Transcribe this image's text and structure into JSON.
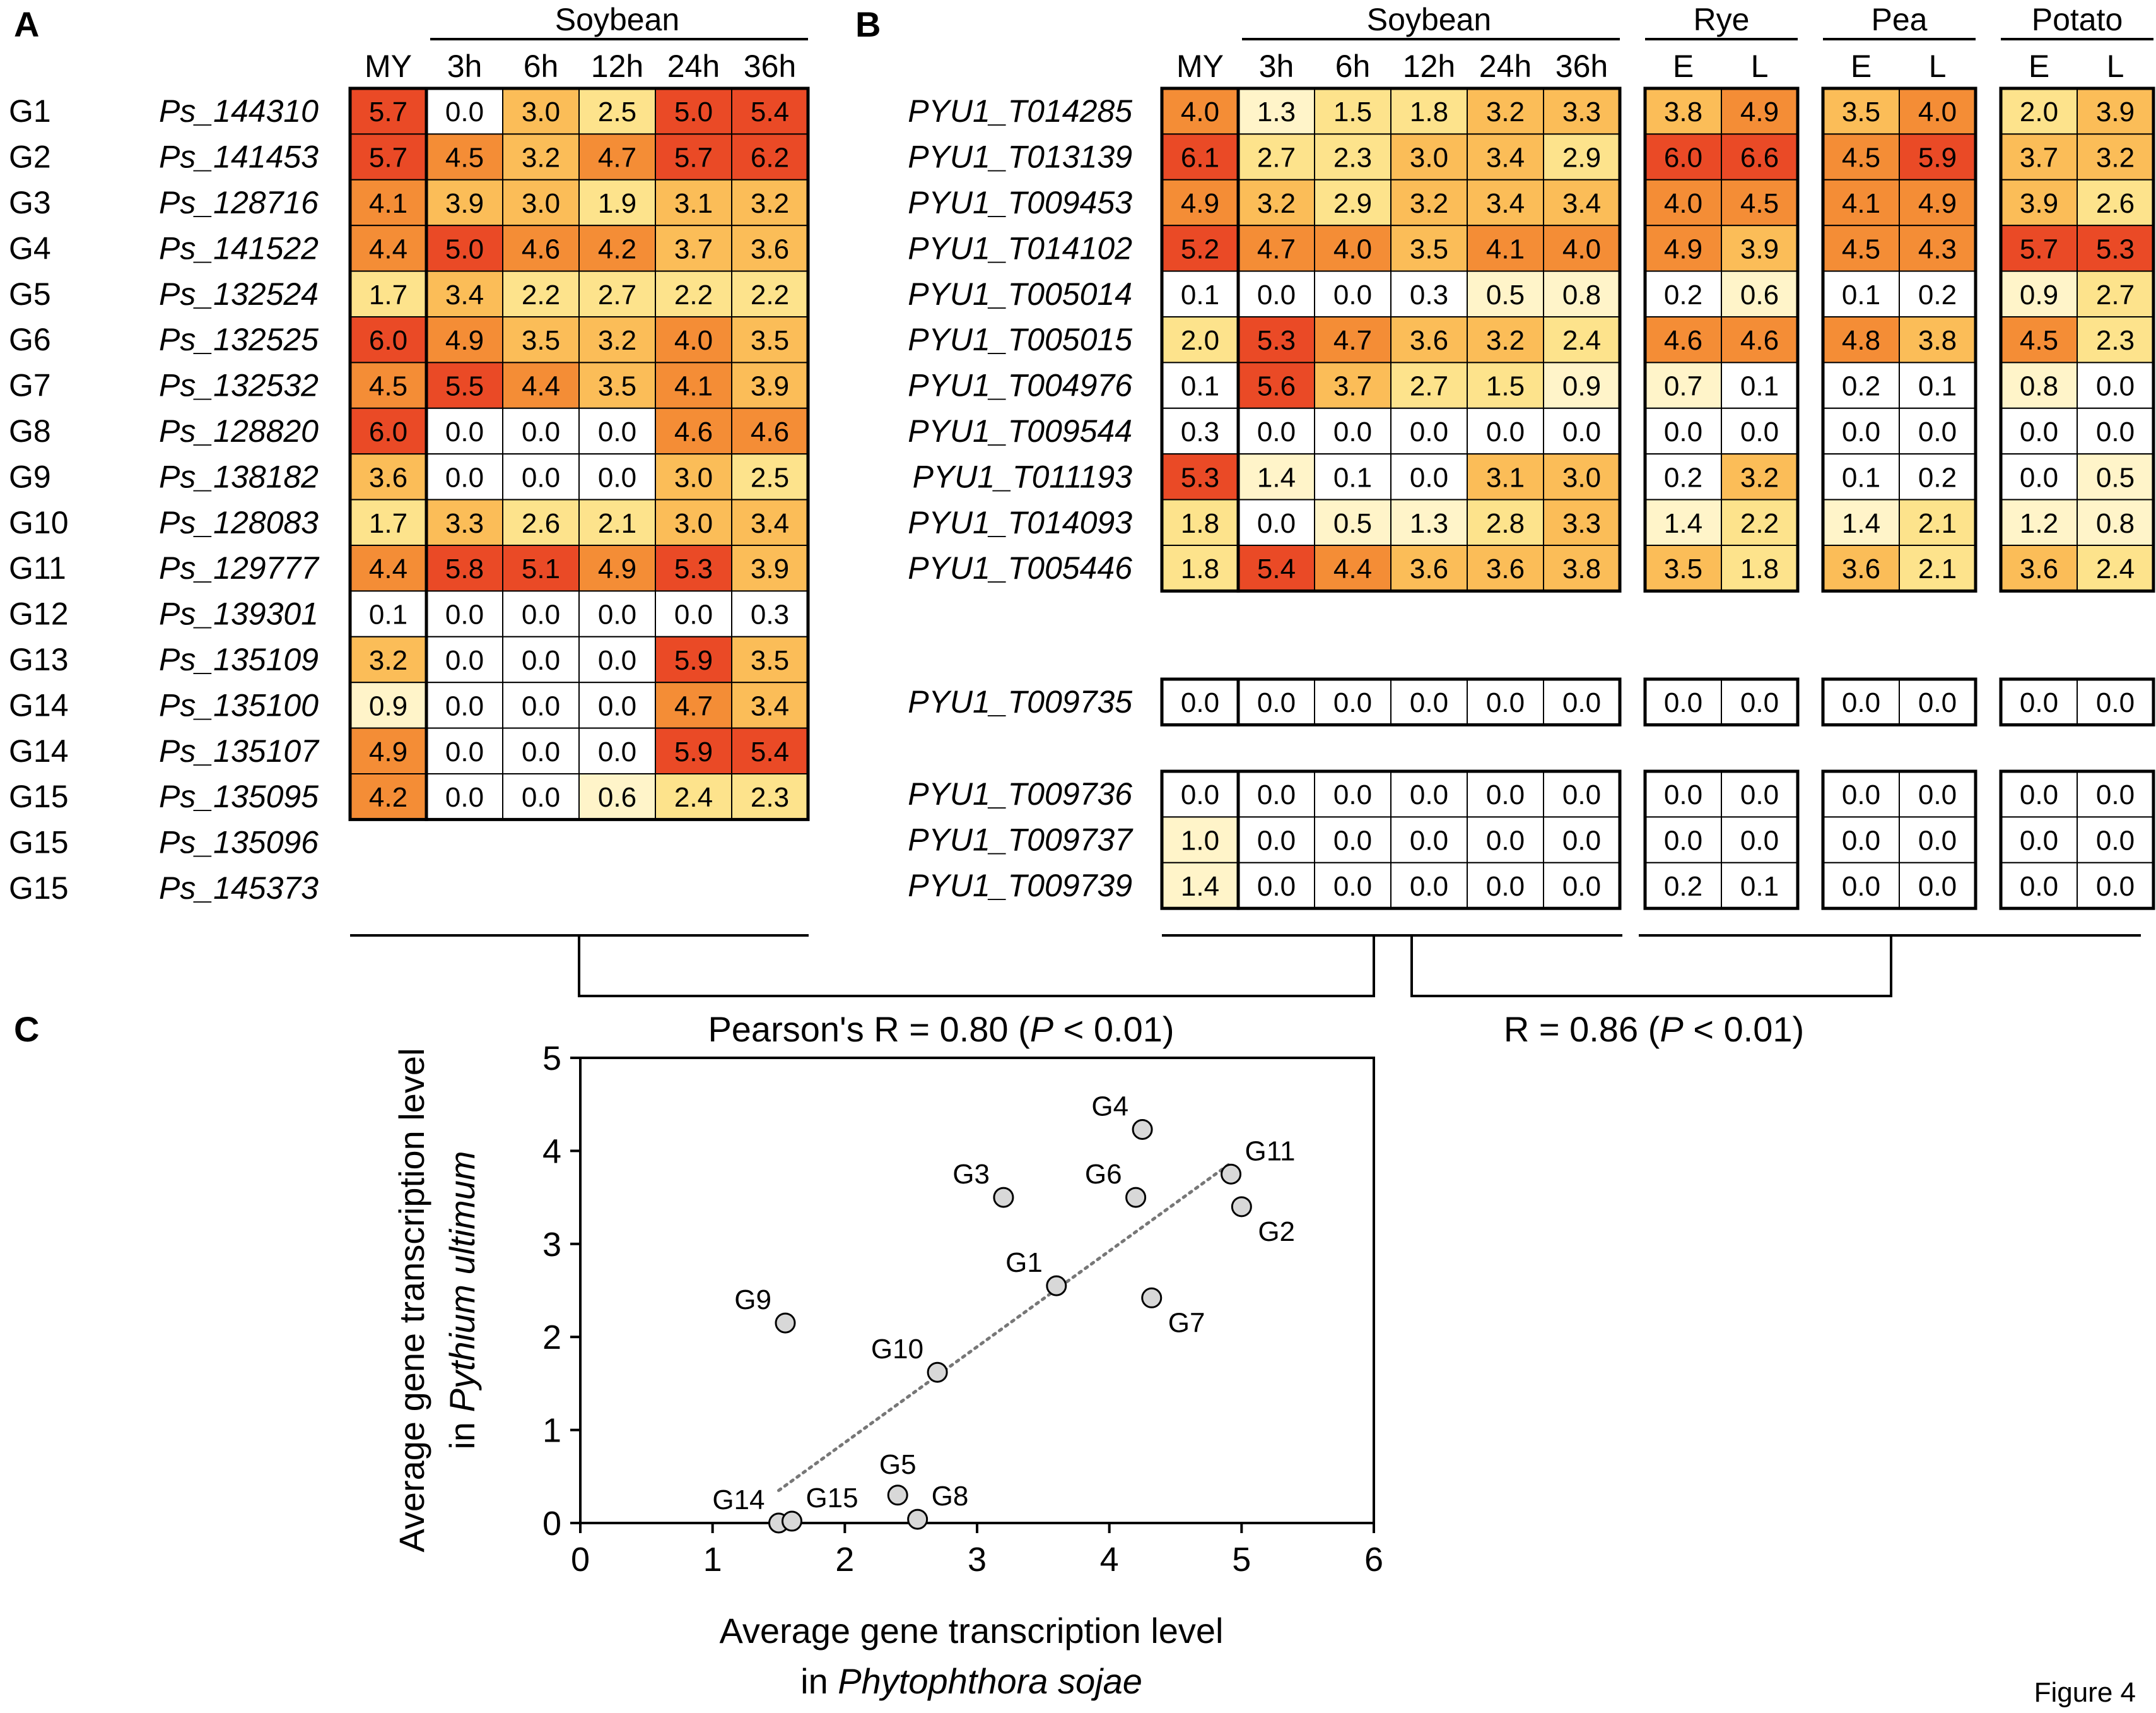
{
  "figure_label": "Figure 4",
  "colors": {
    "scale": [
      "#ffffff",
      "#fff4c9",
      "#fde38c",
      "#fbbd58",
      "#f48d36",
      "#ea4a26"
    ],
    "stroke": "#000000",
    "point_fill": "#d8d8d8",
    "trend": "#777777"
  },
  "panel_a": {
    "letter": "A",
    "group_title": "Soybean",
    "columns": [
      "MY",
      "3h",
      "6h",
      "12h",
      "24h",
      "36h"
    ],
    "rows": [
      {
        "g": "G1",
        "id": "Ps_144310",
        "v": [
          5.7,
          0.0,
          3.0,
          2.5,
          5.0,
          5.4
        ]
      },
      {
        "g": "G2",
        "id": "Ps_141453",
        "v": [
          5.7,
          4.5,
          3.2,
          4.7,
          5.7,
          6.2
        ]
      },
      {
        "g": "G3",
        "id": "Ps_128716",
        "v": [
          4.1,
          3.9,
          3.0,
          1.9,
          3.1,
          3.2
        ]
      },
      {
        "g": "G4",
        "id": "Ps_141522",
        "v": [
          4.4,
          5.0,
          4.6,
          4.2,
          3.7,
          3.6
        ]
      },
      {
        "g": "G5",
        "id": "Ps_132524",
        "v": [
          1.7,
          3.4,
          2.2,
          2.7,
          2.2,
          2.2
        ]
      },
      {
        "g": "G6",
        "id": "Ps_132525",
        "v": [
          6.0,
          4.9,
          3.5,
          3.2,
          4.0,
          3.5
        ]
      },
      {
        "g": "G7",
        "id": "Ps_132532",
        "v": [
          4.5,
          5.5,
          4.4,
          3.5,
          4.1,
          3.9
        ]
      },
      {
        "g": "G8",
        "id": "Ps_128820",
        "v": [
          6.0,
          0.0,
          0.0,
          0.0,
          4.6,
          4.6
        ]
      },
      {
        "g": "G9",
        "id": "Ps_138182",
        "v": [
          3.6,
          0.0,
          0.0,
          0.0,
          3.0,
          2.5
        ]
      },
      {
        "g": "G10",
        "id": "Ps_128083",
        "v": [
          1.7,
          3.3,
          2.6,
          2.1,
          3.0,
          3.4
        ]
      },
      {
        "g": "G11",
        "id": "Ps_129777",
        "v": [
          4.4,
          5.8,
          5.1,
          4.9,
          5.3,
          3.9
        ]
      },
      {
        "g": "G12",
        "id": "Ps_139301",
        "v": [
          0.1,
          0.0,
          0.0,
          0.0,
          0.0,
          0.3
        ]
      },
      {
        "g": "G13",
        "id": "Ps_135109",
        "v": [
          3.2,
          0.0,
          0.0,
          0.0,
          5.9,
          3.5
        ]
      },
      {
        "g": "G14",
        "id": "Ps_135100",
        "v": [
          0.9,
          0.0,
          0.0,
          0.0,
          4.7,
          3.4
        ]
      },
      {
        "g": "G14",
        "id": "Ps_135107",
        "v": [
          4.9,
          0.0,
          0.0,
          0.0,
          5.9,
          5.4
        ]
      },
      {
        "g": "G15",
        "id": "Ps_135095",
        "v": [
          4.2,
          0.0,
          0.0,
          0.6,
          2.4,
          2.3
        ]
      },
      {
        "g": "G15",
        "id": "Ps_135096",
        "v": null
      },
      {
        "g": "G15",
        "id": "Ps_145373",
        "v": null
      }
    ]
  },
  "panel_b": {
    "letter": "B",
    "groups": [
      {
        "title": "Soybean",
        "columns": [
          "MY",
          "3h",
          "6h",
          "12h",
          "24h",
          "36h"
        ]
      },
      {
        "title": "Rye",
        "columns": [
          "E",
          "L"
        ]
      },
      {
        "title": "Pea",
        "columns": [
          "E",
          "L"
        ]
      },
      {
        "title": "Potato",
        "columns": [
          "E",
          "L"
        ]
      }
    ],
    "row_blocks": [
      [
        {
          "id": "PYU1_T014285",
          "v": [
            4.0,
            1.3,
            1.5,
            1.8,
            3.2,
            3.3,
            3.8,
            4.9,
            3.5,
            4.0,
            2.0,
            3.9
          ]
        },
        {
          "id": "PYU1_T013139",
          "v": [
            6.1,
            2.7,
            2.3,
            3.0,
            3.4,
            2.9,
            6.0,
            6.6,
            4.5,
            5.9,
            3.7,
            3.2
          ]
        },
        {
          "id": "PYU1_T009453",
          "v": [
            4.9,
            3.2,
            2.9,
            3.2,
            3.4,
            3.4,
            4.0,
            4.5,
            4.1,
            4.9,
            3.9,
            2.6
          ]
        },
        {
          "id": "PYU1_T014102",
          "v": [
            5.2,
            4.7,
            4.0,
            3.5,
            4.1,
            4.0,
            4.9,
            3.9,
            4.5,
            4.3,
            5.7,
            5.3
          ]
        },
        {
          "id": "PYU1_T005014",
          "v": [
            0.1,
            0.0,
            0.0,
            0.3,
            0.5,
            0.8,
            0.2,
            0.6,
            0.1,
            0.2,
            0.9,
            2.7
          ]
        },
        {
          "id": "PYU1_T005015",
          "v": [
            2.0,
            5.3,
            4.7,
            3.6,
            3.2,
            2.4,
            4.6,
            4.6,
            4.8,
            3.8,
            4.5,
            2.3
          ]
        },
        {
          "id": "PYU1_T004976",
          "v": [
            0.1,
            5.6,
            3.7,
            2.7,
            1.5,
            0.9,
            0.7,
            0.1,
            0.2,
            0.1,
            0.8,
            0.0
          ]
        },
        {
          "id": "PYU1_T009544",
          "v": [
            0.3,
            0.0,
            0.0,
            0.0,
            0.0,
            0.0,
            0.0,
            0.0,
            0.0,
            0.0,
            0.0,
            0.0
          ]
        },
        {
          "id": "PYU1_T011193",
          "v": [
            5.3,
            1.4,
            0.1,
            0.0,
            3.1,
            3.0,
            0.2,
            3.2,
            0.1,
            0.2,
            0.0,
            0.5
          ]
        },
        {
          "id": "PYU1_T014093",
          "v": [
            1.8,
            0.0,
            0.5,
            1.3,
            2.8,
            3.3,
            1.4,
            2.2,
            1.4,
            2.1,
            1.2,
            0.8
          ]
        },
        {
          "id": "PYU1_T005446",
          "v": [
            1.8,
            5.4,
            4.4,
            3.6,
            3.6,
            3.8,
            3.5,
            1.8,
            3.6,
            2.1,
            3.6,
            2.4
          ]
        }
      ],
      [
        {
          "id": "PYU1_T009735",
          "v": [
            0.0,
            0.0,
            0.0,
            0.0,
            0.0,
            0.0,
            0.0,
            0.0,
            0.0,
            0.0,
            0.0,
            0.0
          ]
        }
      ],
      [
        {
          "id": "PYU1_T009736",
          "v": [
            0.0,
            0.0,
            0.0,
            0.0,
            0.0,
            0.0,
            0.0,
            0.0,
            0.0,
            0.0,
            0.0,
            0.0
          ]
        },
        {
          "id": "PYU1_T009737",
          "v": [
            1.0,
            0.0,
            0.0,
            0.0,
            0.0,
            0.0,
            0.0,
            0.0,
            0.0,
            0.0,
            0.0,
            0.0
          ]
        },
        {
          "id": "PYU1_T009739",
          "v": [
            1.4,
            0.0,
            0.0,
            0.0,
            0.0,
            0.0,
            0.2,
            0.1,
            0.0,
            0.0,
            0.0,
            0.0
          ]
        }
      ]
    ]
  },
  "correlations": {
    "left": {
      "prefix": "Pearson's R = 0.80 (",
      "p": "P",
      "suffix": " < 0.01)"
    },
    "right": {
      "prefix": "R = 0.86 (",
      "p": "P",
      "suffix": " < 0.01)"
    }
  },
  "chart_data": {
    "letter": "C",
    "type": "scatter",
    "title": "",
    "xlabel_line1": "Average gene transcription level",
    "xlabel_line2_prefix": "in ",
    "xlabel_line2_italic": "Phytophthora sojae",
    "ylabel_line1": "Average gene transcription level",
    "ylabel_line2_prefix": "in ",
    "ylabel_line2_italic": "Pythium ultimum",
    "xlim": [
      0,
      6
    ],
    "ylim": [
      0,
      5
    ],
    "xticks": [
      "0",
      "1",
      "2",
      "3",
      "4",
      "5",
      "6"
    ],
    "yticks": [
      "0",
      "1",
      "2",
      "3",
      "4",
      "5"
    ],
    "points": [
      {
        "label": "G1",
        "x": 3.6,
        "y": 2.55,
        "pos": "upper-left"
      },
      {
        "label": "G2",
        "x": 5.0,
        "y": 3.4,
        "pos": "lower-right"
      },
      {
        "label": "G3",
        "x": 3.2,
        "y": 3.5,
        "pos": "upper-left"
      },
      {
        "label": "G4",
        "x": 4.25,
        "y": 4.23,
        "pos": "upper-left"
      },
      {
        "label": "G5",
        "x": 2.4,
        "y": 0.3,
        "pos": "above"
      },
      {
        "label": "G6",
        "x": 4.2,
        "y": 3.5,
        "pos": "upper-left"
      },
      {
        "label": "G7",
        "x": 4.32,
        "y": 2.42,
        "pos": "lower-right"
      },
      {
        "label": "G8",
        "x": 2.55,
        "y": 0.04,
        "pos": "upper-right"
      },
      {
        "label": "G9",
        "x": 1.55,
        "y": 2.15,
        "pos": "upper-left"
      },
      {
        "label": "G10",
        "x": 2.7,
        "y": 1.62,
        "pos": "upper-left"
      },
      {
        "label": "G11",
        "x": 4.92,
        "y": 3.75,
        "pos": "upper-right"
      },
      {
        "label": "G14",
        "x": 1.5,
        "y": 0.0,
        "pos": "upper-left"
      },
      {
        "label": "G15",
        "x": 1.6,
        "y": 0.02,
        "pos": "upper-right"
      }
    ],
    "trendline": {
      "x": [
        1.5,
        4.9
      ],
      "y": [
        0.35,
        3.85
      ]
    }
  }
}
